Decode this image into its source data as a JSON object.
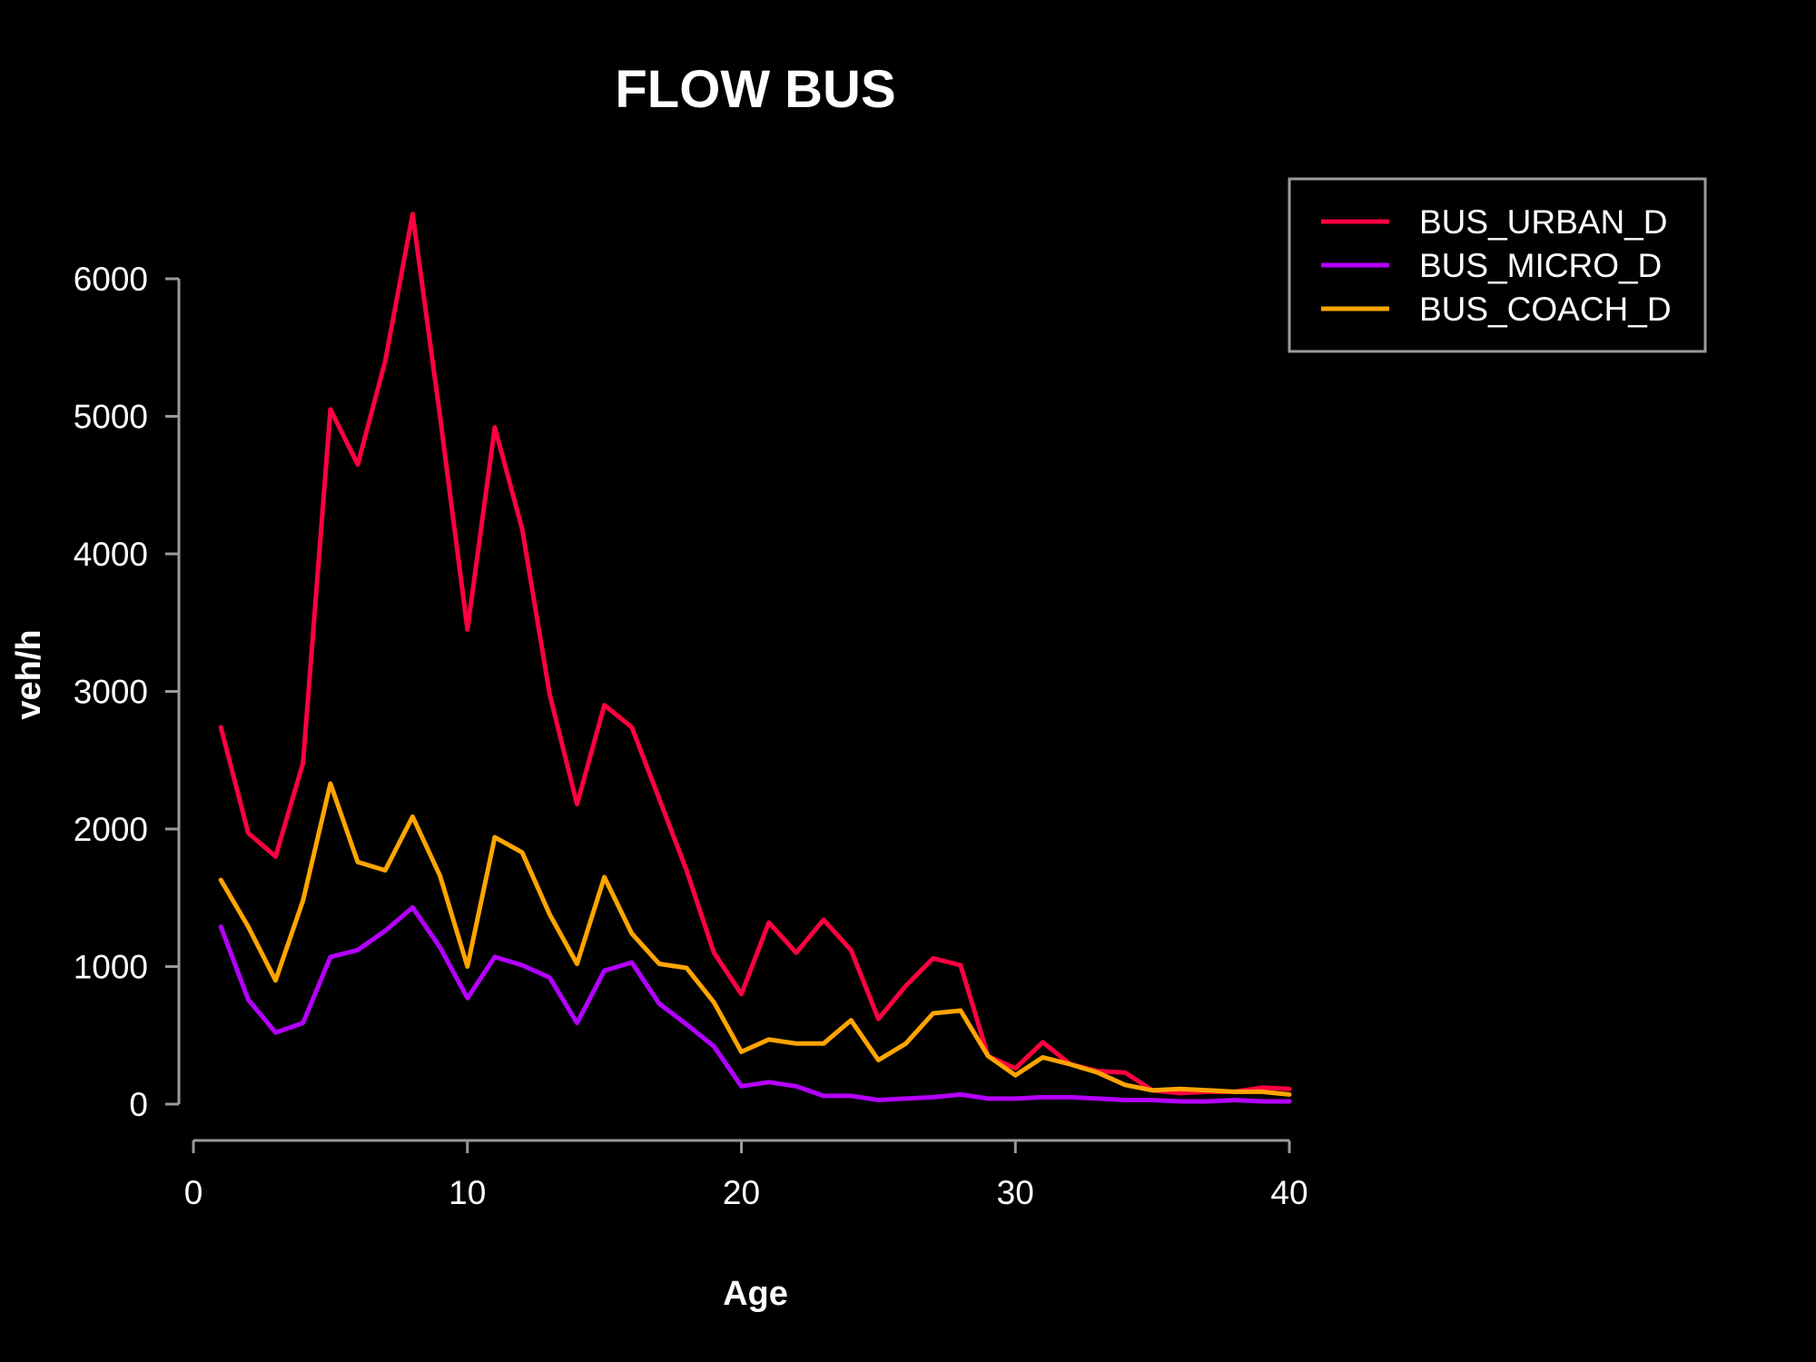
{
  "chart_data": {
    "type": "line",
    "title": "FLOW BUS",
    "xlabel": "Age",
    "ylabel": "veh/h",
    "xlim": [
      0,
      40
    ],
    "ylim": [
      0,
      6500
    ],
    "x_ticks": [
      0,
      10,
      20,
      30,
      40
    ],
    "y_ticks": [
      0,
      1000,
      2000,
      3000,
      4000,
      5000,
      6000
    ],
    "grid": false,
    "legend_position": "top-right",
    "x": [
      1,
      2,
      3,
      4,
      5,
      6,
      7,
      8,
      9,
      10,
      11,
      12,
      13,
      14,
      15,
      16,
      17,
      18,
      19,
      20,
      21,
      22,
      23,
      24,
      25,
      26,
      27,
      28,
      29,
      30,
      31,
      32,
      33,
      34,
      35,
      36,
      37,
      38,
      39,
      40
    ],
    "series": [
      {
        "name": "BUS_URBAN_D",
        "color": "#ff0040",
        "values": [
          2740,
          1970,
          1800,
          2480,
          5050,
          4650,
          5400,
          6470,
          5000,
          3450,
          4920,
          4180,
          2980,
          2180,
          2900,
          2740,
          2220,
          1700,
          1100,
          800,
          1320,
          1100,
          1340,
          1120,
          620,
          860,
          1060,
          1010,
          350,
          260,
          450,
          290,
          240,
          230,
          100,
          80,
          90,
          90,
          120,
          110
        ]
      },
      {
        "name": "BUS_MICRO_D",
        "color": "#b400ff",
        "values": [
          1290,
          760,
          520,
          590,
          1070,
          1120,
          1260,
          1430,
          1140,
          770,
          1070,
          1010,
          920,
          590,
          970,
          1030,
          730,
          580,
          420,
          130,
          160,
          130,
          60,
          60,
          30,
          40,
          50,
          70,
          40,
          40,
          50,
          50,
          40,
          30,
          30,
          20,
          20,
          30,
          20,
          20
        ]
      },
      {
        "name": "BUS_COACH_D",
        "color": "#ffa500",
        "values": [
          1630,
          1290,
          900,
          1480,
          2330,
          1760,
          1700,
          2090,
          1660,
          1000,
          1940,
          1830,
          1380,
          1020,
          1650,
          1240,
          1020,
          990,
          740,
          380,
          470,
          440,
          440,
          610,
          320,
          440,
          660,
          680,
          350,
          210,
          340,
          290,
          230,
          140,
          100,
          110,
          100,
          90,
          90,
          70
        ]
      }
    ]
  }
}
